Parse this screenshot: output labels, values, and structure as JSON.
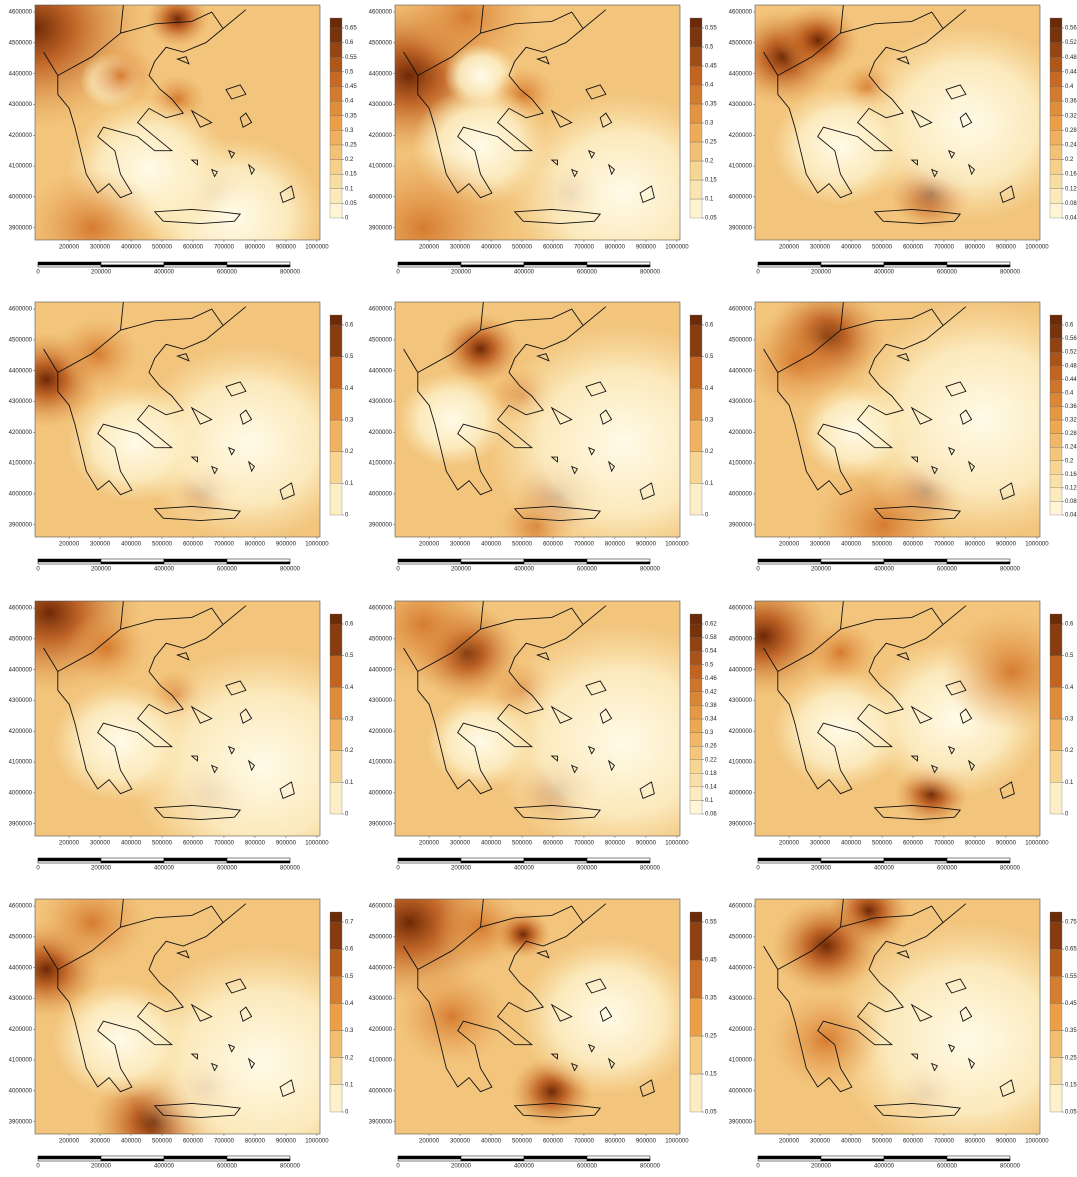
{
  "axes": {
    "xlim": [
      90000,
      1010000
    ],
    "ylim": [
      3860000,
      4623000
    ],
    "xticks": [
      200000,
      300000,
      400000,
      500000,
      600000,
      700000,
      800000,
      900000,
      1000000
    ],
    "yticks": [
      3900000,
      4000000,
      4100000,
      4200000,
      4300000,
      4400000,
      4500000,
      4600000
    ],
    "scale_bar_ticks": [
      0,
      200000,
      400000,
      600000,
      800000
    ]
  },
  "panels": [
    {
      "colorbar_ticks": [
        0,
        0.05,
        0.1,
        0.15,
        0.2,
        0.25,
        0.3,
        0.35,
        0.4,
        0.45,
        0.5,
        0.55,
        0.6,
        0.65
      ]
    },
    {
      "colorbar_ticks": [
        0.05,
        0.1,
        0.15,
        0.2,
        0.25,
        0.3,
        0.35,
        0.4,
        0.45,
        0.5,
        0.55
      ]
    },
    {
      "colorbar_ticks": [
        0.04,
        0.08,
        0.12,
        0.16,
        0.2,
        0.24,
        0.28,
        0.32,
        0.36,
        0.4,
        0.44,
        0.48,
        0.52,
        0.56
      ]
    },
    {
      "colorbar_ticks": [
        0,
        0.1,
        0.2,
        0.3,
        0.4,
        0.5,
        0.6
      ]
    },
    {
      "colorbar_ticks": [
        0,
        0.1,
        0.2,
        0.3,
        0.4,
        0.5,
        0.6
      ]
    },
    {
      "colorbar_ticks": [
        0.04,
        0.08,
        0.12,
        0.16,
        0.2,
        0.24,
        0.28,
        0.32,
        0.36,
        0.4,
        0.44,
        0.48,
        0.52,
        0.56,
        0.6
      ]
    },
    {
      "colorbar_ticks": [
        0,
        0.1,
        0.2,
        0.3,
        0.4,
        0.5,
        0.6
      ]
    },
    {
      "colorbar_ticks": [
        0.06,
        0.1,
        0.14,
        0.18,
        0.22,
        0.26,
        0.3,
        0.34,
        0.38,
        0.42,
        0.46,
        0.5,
        0.54,
        0.58,
        0.62
      ]
    },
    {
      "colorbar_ticks": [
        0,
        0.1,
        0.2,
        0.3,
        0.4,
        0.5,
        0.6
      ]
    },
    {
      "colorbar_ticks": [
        0,
        0.1,
        0.2,
        0.3,
        0.4,
        0.5,
        0.6,
        0.7
      ]
    },
    {
      "colorbar_ticks": [
        0.05,
        0.15,
        0.25,
        0.35,
        0.45,
        0.55
      ]
    },
    {
      "colorbar_ticks": [
        0.05,
        0.15,
        0.25,
        0.35,
        0.45,
        0.55,
        0.65,
        0.75
      ]
    }
  ]
}
